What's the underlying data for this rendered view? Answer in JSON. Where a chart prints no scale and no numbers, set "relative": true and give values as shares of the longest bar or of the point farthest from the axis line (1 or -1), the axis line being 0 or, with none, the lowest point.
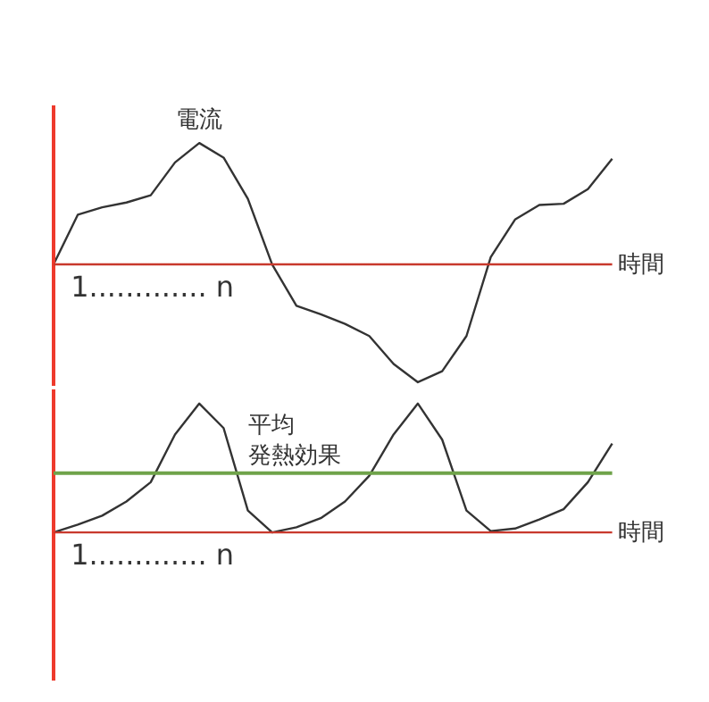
{
  "chart_data": [
    {
      "type": "line",
      "relative": true,
      "categories": [
        null,
        null,
        null,
        null,
        null,
        null,
        null,
        null,
        null,
        null,
        null,
        null,
        null,
        null,
        null,
        null,
        null,
        null,
        null,
        null,
        null,
        null,
        null,
        null
      ],
      "xlabel": "時間",
      "grid": false,
      "annotations": [
        "電流",
        "1............. n"
      ],
      "ref_lines": [
        {
          "axis": "y",
          "value": 0,
          "color": "#c8382c"
        }
      ],
      "series": [
        {
          "color": "#333333",
          "values": [
            0,
            0.41,
            0.47,
            0.51,
            0.57,
            0.84,
            1.0,
            0.88,
            0.54,
            0,
            -0.34,
            -0.41,
            -0.49,
            -0.59,
            -0.82,
            -0.97,
            -0.88,
            -0.59,
            0.06,
            0.37,
            0.49,
            0.5,
            0.62,
            0.87
          ]
        }
      ]
    },
    {
      "type": "line",
      "relative": true,
      "categories": [
        null,
        null,
        null,
        null,
        null,
        null,
        null,
        null,
        null,
        null,
        null,
        null,
        null,
        null,
        null,
        null,
        null,
        null,
        null,
        null,
        null,
        null,
        null,
        null
      ],
      "xlabel": "時間",
      "grid": false,
      "annotations": [
        "1............. n"
      ],
      "ref_lines": [
        {
          "axis": "y",
          "value": 0,
          "color": "#c8382c"
        },
        {
          "axis": "y",
          "value": 0.46,
          "label": "平均発熱効果",
          "color": "#6fa34a"
        }
      ],
      "series": [
        {
          "color": "#333333",
          "values": [
            0,
            0.06,
            0.13,
            0.24,
            0.39,
            0.76,
            1.0,
            0.81,
            0.17,
            0,
            0.04,
            0.11,
            0.24,
            0.44,
            0.76,
            1.0,
            0.72,
            0.17,
            0.01,
            0.03,
            0.1,
            0.18,
            0.39,
            0.69
          ]
        }
      ]
    }
  ]
}
